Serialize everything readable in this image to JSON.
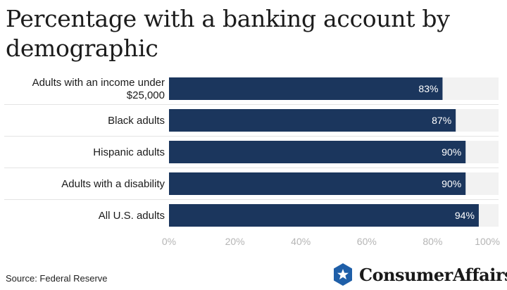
{
  "chart_data": {
    "type": "bar",
    "orientation": "horizontal",
    "title": "Percentage with a banking account by demographic",
    "categories": [
      [
        "Adults with an income under",
        "$25,000"
      ],
      [
        "Black adults"
      ],
      [
        "Hispanic adults"
      ],
      [
        "Adults with a disability"
      ],
      [
        "All U.S. adults"
      ]
    ],
    "values": [
      83,
      87,
      90,
      90,
      94
    ],
    "value_labels": [
      "83%",
      "87%",
      "90%",
      "90%",
      "94%"
    ],
    "xlim": [
      0,
      100
    ],
    "x_ticks": [
      "0%",
      "20%",
      "40%",
      "60%",
      "80%",
      "100%"
    ],
    "x_tick_values": [
      0,
      20,
      40,
      60,
      80,
      100
    ],
    "grid": false,
    "bar_color": "#1b365d",
    "track_color": "#f2f2f2"
  },
  "footer": {
    "source": "Source: Federal Reserve",
    "logo_text": "ConsumerAffairs",
    "logo_icon": "star-shield-icon",
    "logo_color": "#1f5fa8"
  }
}
